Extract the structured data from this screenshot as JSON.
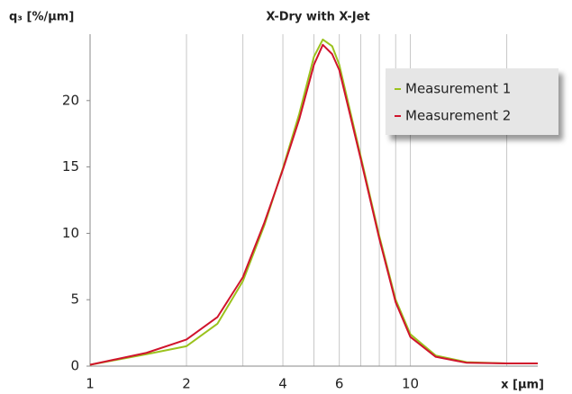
{
  "chart_data": {
    "type": "line",
    "title": "X-Dry with X-Jet",
    "y_label": "q₃ [%/µm]",
    "x_label": "x [µm]",
    "x": [
      1,
      1.5,
      2,
      2.5,
      3,
      3.5,
      4,
      4.5,
      5,
      5.33,
      5.7,
      6,
      7,
      8,
      9,
      10,
      12,
      15,
      20,
      25
    ],
    "series": [
      {
        "name": "Measurement 1",
        "color": "#9bc21d",
        "values": [
          0.1,
          0.9,
          1.5,
          3.2,
          6.4,
          10.6,
          14.9,
          19.0,
          23.3,
          24.6,
          24.1,
          22.7,
          15.8,
          9.8,
          5.0,
          2.4,
          0.8,
          0.3,
          0.2,
          0.2
        ]
      },
      {
        "name": "Measurement 2",
        "color": "#d0142c",
        "values": [
          0.1,
          1.0,
          2.0,
          3.7,
          6.7,
          10.8,
          14.8,
          18.6,
          22.7,
          24.2,
          23.5,
          22.3,
          15.6,
          9.6,
          4.8,
          2.2,
          0.7,
          0.25,
          0.2,
          0.2
        ]
      }
    ],
    "xscale": "log",
    "xlim": [
      1,
      25
    ],
    "xticks": [
      1,
      2,
      4,
      6,
      10
    ],
    "xminor": [
      3,
      5,
      7,
      8,
      9,
      20
    ],
    "ylim": [
      0,
      25
    ],
    "yticks": [
      0,
      5,
      10,
      15,
      20
    ],
    "grid": "x",
    "legend": "upper right"
  }
}
